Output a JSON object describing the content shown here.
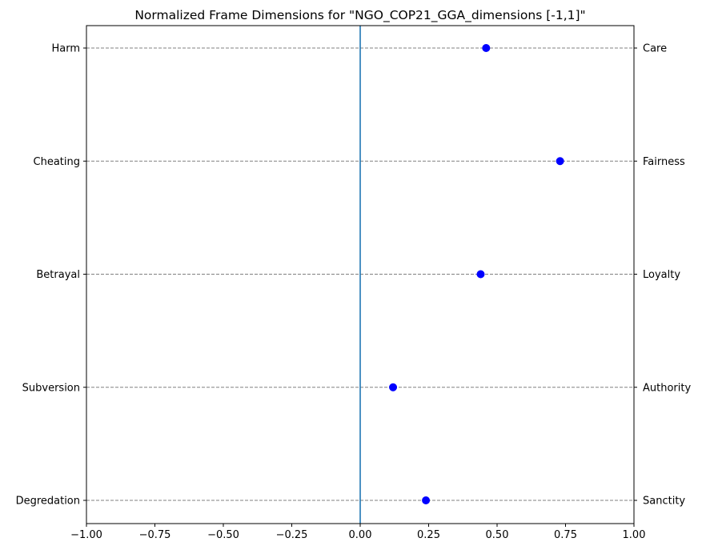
{
  "chart_data": {
    "type": "scatter",
    "title": "Normalized Frame Dimensions for \"NGO_COP21_GGA_dimensions [-1,1]\"",
    "xlabel": "",
    "ylabel": "",
    "xlim": [
      -1.0,
      1.0
    ],
    "x_ticks": [
      -1.0,
      -0.75,
      -0.5,
      -0.25,
      0.0,
      0.25,
      0.5,
      0.75,
      1.0
    ],
    "x_tick_labels": [
      "−1.00",
      "−0.75",
      "−0.50",
      "−0.25",
      "0.00",
      "0.25",
      "0.50",
      "0.75",
      "1.00"
    ],
    "categories_left": [
      "Harm",
      "Cheating",
      "Betrayal",
      "Subversion",
      "Degredation"
    ],
    "categories_right": [
      "Care",
      "Fairness",
      "Loyalty",
      "Authority",
      "Sanctity"
    ],
    "values": [
      0.46,
      0.73,
      0.44,
      0.12,
      0.24
    ],
    "reference_line_x": 0.0,
    "grid": "horizontal dashed",
    "colors": {
      "points": "#0000ff",
      "reference_line": "#1f77b4",
      "grid": "#808080",
      "axes": "#000000"
    }
  }
}
